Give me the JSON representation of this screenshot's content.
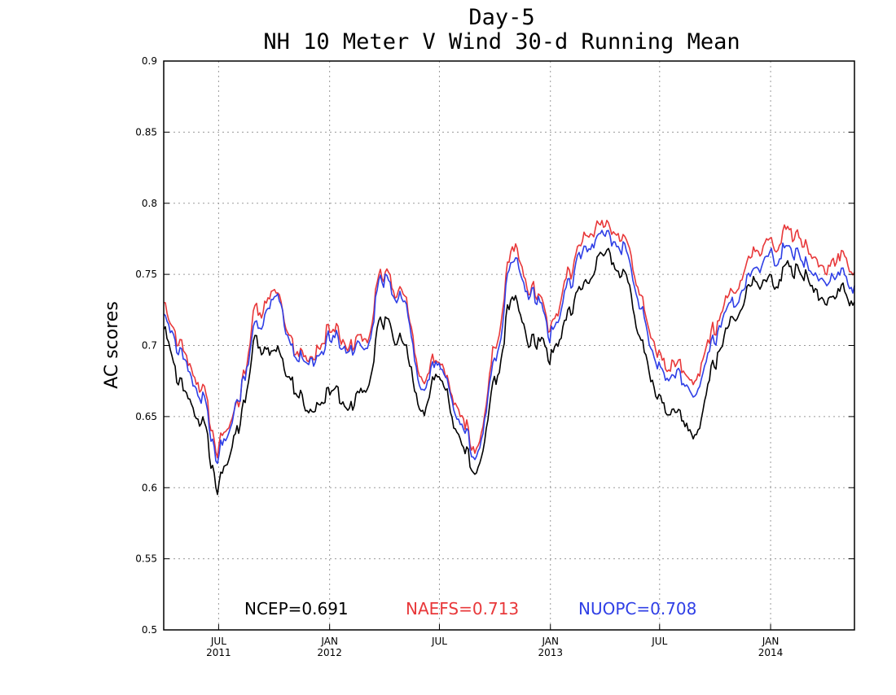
{
  "chart_data": {
    "type": "line",
    "title": "Day-5",
    "subtitle": "NH 10 Meter V Wind 30-d Running Mean",
    "ylabel": "AC scores",
    "xlabel": "",
    "ylim": [
      0.5,
      0.9
    ],
    "yticks": [
      "0.5",
      "0.55",
      "0.6",
      "0.65",
      "0.7",
      "0.75",
      "0.8",
      "0.85",
      "0.9"
    ],
    "xlim": [
      "2011-04-01",
      "2014-05-20"
    ],
    "xticks": [
      {
        "date": "2011-07-01",
        "month": "JUL",
        "year": "2011"
      },
      {
        "date": "2012-01-01",
        "month": "JAN",
        "year": "2012"
      },
      {
        "date": "2012-07-01",
        "month": "JUL",
        "year": ""
      },
      {
        "date": "2013-01-01",
        "month": "JAN",
        "year": "2013"
      },
      {
        "date": "2013-07-01",
        "month": "JUL",
        "year": ""
      },
      {
        "date": "2014-01-01",
        "month": "JAN",
        "year": "2014"
      }
    ],
    "grid": true,
    "legend_placement": "bottom-inside",
    "x": [
      "2011-04-01",
      "2011-05-01",
      "2011-06-01",
      "2011-07-01",
      "2011-07-15",
      "2011-08-01",
      "2011-09-01",
      "2011-10-01",
      "2011-11-01",
      "2011-12-01",
      "2012-01-01",
      "2012-02-01",
      "2012-03-01",
      "2012-04-01",
      "2012-05-01",
      "2012-06-01",
      "2012-07-01",
      "2012-08-01",
      "2012-09-01",
      "2012-10-01",
      "2012-11-01",
      "2012-12-01",
      "2013-01-01",
      "2013-02-01",
      "2013-03-01",
      "2013-04-01",
      "2013-05-01",
      "2013-06-01",
      "2013-07-01",
      "2013-08-01",
      "2013-09-01",
      "2013-10-01",
      "2013-11-01",
      "2013-12-01",
      "2014-01-01",
      "2014-02-01",
      "2014-03-01",
      "2014-04-01",
      "2014-05-01",
      "2014-05-20"
    ],
    "series": [
      {
        "name": "NCEP",
        "legend": "NCEP=0.691",
        "color": "#000000",
        "values": [
          0.712,
          0.672,
          0.648,
          0.602,
          0.615,
          0.64,
          0.7,
          0.698,
          0.674,
          0.652,
          0.67,
          0.655,
          0.67,
          0.72,
          0.7,
          0.655,
          0.68,
          0.64,
          0.612,
          0.675,
          0.735,
          0.705,
          0.69,
          0.72,
          0.745,
          0.762,
          0.75,
          0.7,
          0.66,
          0.65,
          0.64,
          0.69,
          0.718,
          0.745,
          0.742,
          0.752,
          0.748,
          0.732,
          0.74,
          0.732
        ]
      },
      {
        "name": "NAEFS",
        "legend": "NAEFS=0.713",
        "color": "#e8383a",
        "values": [
          0.728,
          0.7,
          0.672,
          0.628,
          0.638,
          0.658,
          0.722,
          0.738,
          0.702,
          0.69,
          0.712,
          0.698,
          0.705,
          0.752,
          0.735,
          0.678,
          0.69,
          0.658,
          0.628,
          0.698,
          0.77,
          0.742,
          0.712,
          0.748,
          0.778,
          0.782,
          0.775,
          0.73,
          0.69,
          0.685,
          0.678,
          0.715,
          0.738,
          0.765,
          0.77,
          0.778,
          0.77,
          0.755,
          0.765,
          0.755
        ]
      },
      {
        "name": "NUOPC",
        "legend": "NUOPC=0.708",
        "color": "#2f3fe6",
        "values": [
          0.722,
          0.695,
          0.665,
          0.622,
          0.632,
          0.66,
          0.712,
          0.735,
          0.698,
          0.686,
          0.706,
          0.694,
          0.7,
          0.748,
          0.73,
          0.672,
          0.688,
          0.652,
          0.624,
          0.69,
          0.762,
          0.738,
          0.706,
          0.74,
          0.77,
          0.775,
          0.768,
          0.722,
          0.682,
          0.677,
          0.668,
          0.708,
          0.73,
          0.752,
          0.76,
          0.765,
          0.758,
          0.746,
          0.752,
          0.742
        ]
      }
    ]
  }
}
